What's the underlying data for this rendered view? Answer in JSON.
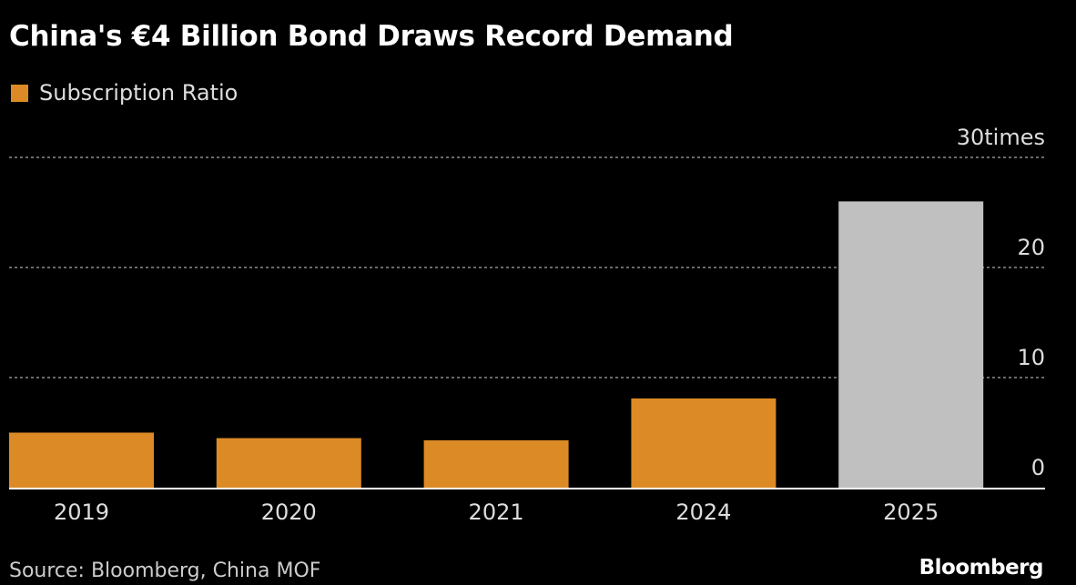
{
  "chart_data": {
    "type": "bar",
    "title": "China's €4 Billion Bond Draws Record Demand",
    "legend": [
      {
        "name": "Subscription Ratio",
        "color": "#dc8a25"
      }
    ],
    "categories": [
      "2019",
      "2020",
      "2021",
      "2024",
      "2025"
    ],
    "series": [
      {
        "name": "Subscription Ratio",
        "values": [
          5.0,
          4.5,
          4.3,
          8.1,
          26.0
        ]
      }
    ],
    "bar_colors": [
      "#dc8a25",
      "#dc8a25",
      "#dc8a25",
      "#dc8a25",
      "#c0c0c0"
    ],
    "yticks": [
      0,
      10,
      20,
      30
    ],
    "ytick_labels": [
      "0",
      "10",
      "20",
      "30times"
    ],
    "ylim": [
      0,
      30
    ],
    "grid": true,
    "legend_position": "top-left",
    "source": "Source: Bloomberg, China MOF",
    "brand": "Bloomberg"
  }
}
